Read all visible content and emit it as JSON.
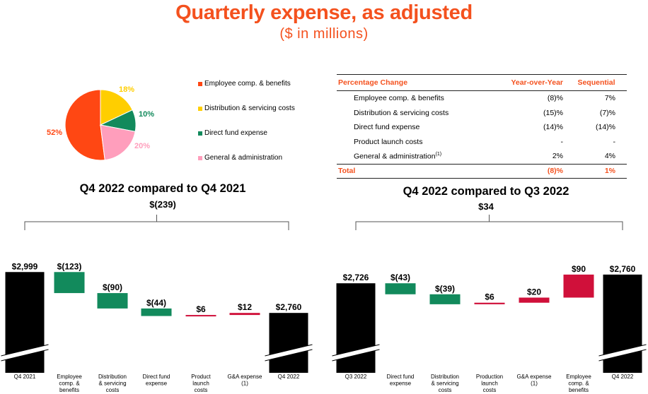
{
  "header": {
    "title": "Quarterly expense, as adjusted",
    "subtitle": "($ in millions)"
  },
  "colors": {
    "accent": "#f4511e",
    "employee": "#ff4713",
    "distribution": "#ffce00",
    "direct_fund": "#128a5c",
    "general": "#ff9ebc",
    "decrease": "#128a5c",
    "increase": "#d0103a",
    "total": "#000000"
  },
  "table": {
    "headers": [
      "Percentage Change",
      "Year-over-Year",
      "Sequential"
    ],
    "rows": [
      {
        "label": "Employee comp. & benefits",
        "yoy": "(8)%",
        "seq": "7%"
      },
      {
        "label": "Distribution & servicing costs",
        "yoy": "(15)%",
        "seq": "(7)%"
      },
      {
        "label": "Direct fund expense",
        "yoy": "(14)%",
        "seq": "(14)%"
      },
      {
        "label": "Product launch costs",
        "yoy": "-",
        "seq": "-"
      },
      {
        "label": "General & administration",
        "sup": "(1)",
        "yoy": "2%",
        "seq": "4%"
      }
    ],
    "total": {
      "label": "Total",
      "yoy": "(8)%",
      "seq": "1%"
    }
  },
  "chart_data": [
    {
      "type": "pie",
      "slices": [
        {
          "label": "Employee comp. & benefits",
          "value": 52,
          "display": "52%"
        },
        {
          "label": "Distribution & servicing costs",
          "value": 18,
          "display": "18%"
        },
        {
          "label": "Direct fund expense",
          "value": 10,
          "display": "10%"
        },
        {
          "label": "General & administration",
          "value": 20,
          "display": "20%"
        }
      ]
    },
    {
      "type": "bar",
      "subtype": "waterfall",
      "title": "Q4 2022 compared to Q4 2021",
      "total_change": "$(239)",
      "steps": [
        {
          "category": "Q4 2021",
          "value": 2999,
          "label": "$2,999",
          "kind": "total"
        },
        {
          "category": "Employee comp. & benefits",
          "value": -123,
          "label": "$(123)",
          "kind": "delta"
        },
        {
          "category": "Distribution & servicing costs",
          "value": -90,
          "label": "$(90)",
          "kind": "delta"
        },
        {
          "category": "Direct fund expense",
          "value": -44,
          "label": "$(44)",
          "kind": "delta"
        },
        {
          "category": "Product launch costs",
          "value": 6,
          "label": "$6",
          "kind": "delta"
        },
        {
          "category": "G&A expense (1)",
          "value": 12,
          "label": "$12",
          "kind": "delta"
        },
        {
          "category": "Q4 2022",
          "value": 2760,
          "label": "$2,760",
          "kind": "total"
        }
      ]
    },
    {
      "type": "bar",
      "subtype": "waterfall",
      "title": "Q4 2022 compared to Q3 2022",
      "total_change": "$34",
      "steps": [
        {
          "category": "Q3 2022",
          "value": 2726,
          "label": "$2,726",
          "kind": "total"
        },
        {
          "category": "Direct fund expense",
          "value": -43,
          "label": "$(43)",
          "kind": "delta"
        },
        {
          "category": "Distribution & servicing costs",
          "value": -39,
          "label": "$(39)",
          "kind": "delta"
        },
        {
          "category": "Production launch costs",
          "value": 6,
          "label": "$6",
          "kind": "delta"
        },
        {
          "category": "G&A expense (1)",
          "value": 20,
          "label": "$20",
          "kind": "delta"
        },
        {
          "category": "Employee comp. & benefits",
          "value": 90,
          "label": "$90",
          "kind": "delta"
        },
        {
          "category": "Q4 2022",
          "value": 2760,
          "label": "$2,760",
          "kind": "total"
        }
      ]
    }
  ]
}
